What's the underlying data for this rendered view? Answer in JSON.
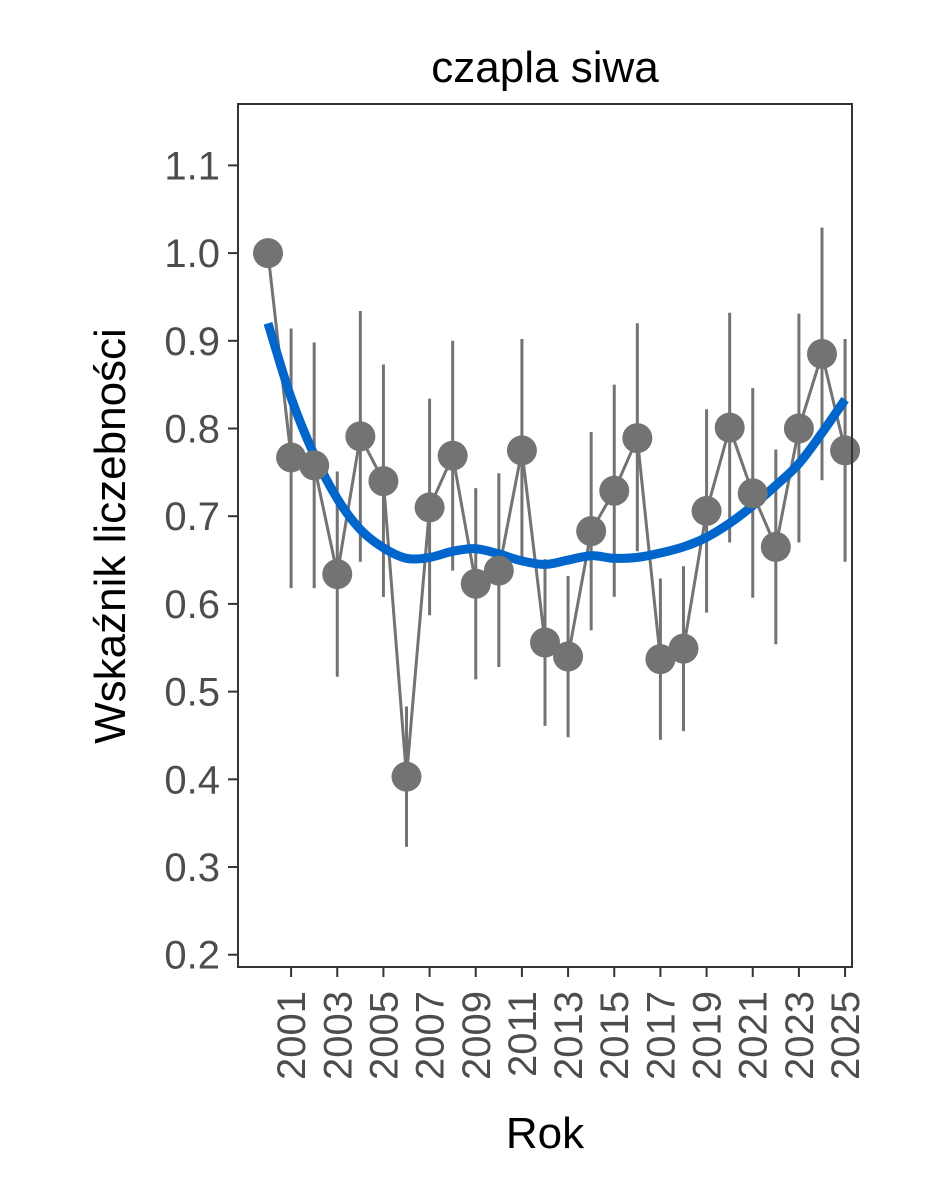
{
  "chart_data": {
    "type": "line",
    "title": "czapla siwa",
    "xlabel": "Rok",
    "ylabel": "Wskaźnik liczebności",
    "xlim": [
      1998.7,
      2025.3
    ],
    "ylim": [
      0.186,
      1.17
    ],
    "x_ticks": [
      "2001",
      "2003",
      "2005",
      "2007",
      "2009",
      "2011",
      "2013",
      "2015",
      "2017",
      "2019",
      "2021",
      "2023",
      "2025"
    ],
    "y_ticks": [
      "0.2",
      "0.3",
      "0.4",
      "0.5",
      "0.6",
      "0.7",
      "0.8",
      "0.9",
      "1.0",
      "1.1"
    ],
    "grid": false,
    "legend": "none",
    "colors": {
      "points": "#737373",
      "trend": "#0066cc",
      "axis": "#333333"
    },
    "series": [
      {
        "x": [
          2000,
          2001,
          2002,
          2003,
          2004,
          2005,
          2006,
          2007,
          2008,
          2009,
          2010,
          2011,
          2012,
          2013,
          2014,
          2015,
          2016,
          2017,
          2018,
          2019,
          2020,
          2021,
          2022,
          2023,
          2024,
          2025
        ],
        "values": [
          1.0,
          0.767,
          0.758,
          0.634,
          0.791,
          0.74,
          0.403,
          0.71,
          0.769,
          0.623,
          0.638,
          0.775,
          0.556,
          0.54,
          0.683,
          0.729,
          0.789,
          0.537,
          0.549,
          0.706,
          0.801,
          0.726,
          0.665,
          0.8,
          0.885,
          0.775
        ],
        "lower": [
          1.0,
          0.618,
          0.618,
          0.517,
          0.648,
          0.608,
          0.323,
          0.587,
          0.638,
          0.514,
          0.528,
          0.654,
          0.461,
          0.448,
          0.57,
          0.608,
          0.66,
          0.445,
          0.455,
          0.59,
          0.67,
          0.607,
          0.554,
          0.67,
          0.741,
          0.648
        ],
        "upper": [
          1.0,
          0.914,
          0.898,
          0.751,
          0.934,
          0.873,
          0.483,
          0.834,
          0.9,
          0.732,
          0.749,
          0.902,
          0.651,
          0.632,
          0.796,
          0.85,
          0.92,
          0.629,
          0.643,
          0.822,
          0.932,
          0.846,
          0.776,
          0.931,
          1.029,
          0.902
        ]
      },
      {
        "x": [
          2000,
          2001,
          2002,
          2003,
          2004,
          2005,
          2006,
          2007,
          2008,
          2009,
          2010,
          2011,
          2012,
          2013,
          2014,
          2015,
          2016,
          2017,
          2018,
          2019,
          2020,
          2021,
          2022,
          2023,
          2024,
          2025
        ],
        "values": [
          0.92,
          0.835,
          0.77,
          0.72,
          0.685,
          0.664,
          0.652,
          0.653,
          0.66,
          0.663,
          0.657,
          0.649,
          0.645,
          0.65,
          0.655,
          0.652,
          0.653,
          0.658,
          0.665,
          0.676,
          0.692,
          0.712,
          0.735,
          0.76,
          0.795,
          0.833
        ]
      }
    ]
  }
}
